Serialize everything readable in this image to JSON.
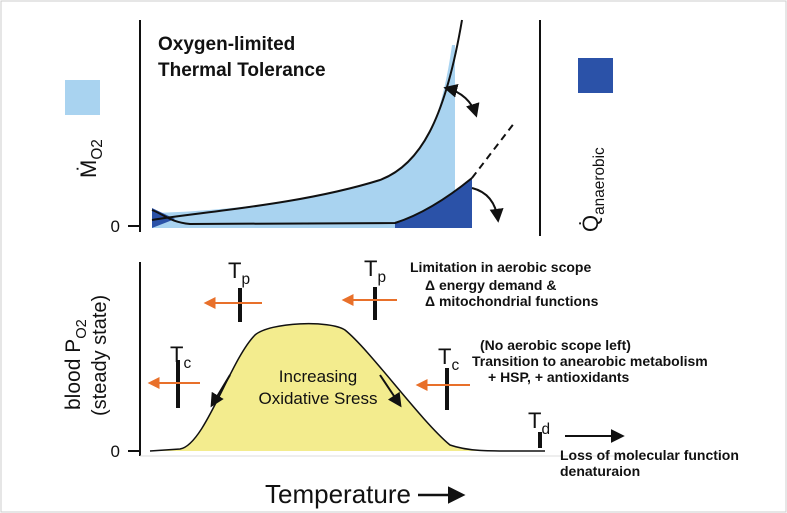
{
  "title": [
    "Oxygen-limited",
    "Thermal Tolerance"
  ],
  "top_panel": {
    "y_label": {
      "symbol": "Ṁ",
      "subscript": "O2"
    },
    "right_label": {
      "symbol": "Q̇",
      "subscript": "anaerobic"
    },
    "zero": "0"
  },
  "bottom_panel": {
    "y_label": {
      "text": "blood P",
      "subscript": "O2"
    },
    "y_label_2": "(steady state)",
    "zero": "0",
    "thresholds": [
      {
        "symbol": "T",
        "subscript": "p"
      },
      {
        "symbol": "T",
        "subscript": "p"
      },
      {
        "symbol": "T",
        "subscript": "c"
      },
      {
        "symbol": "T",
        "subscript": "c"
      },
      {
        "symbol": "T",
        "subscript": "d"
      }
    ],
    "notes": {
      "aerobic": [
        "Limitation in aerobic scope",
        "Δ energy demand &",
        "Δ mitochondrial functions"
      ],
      "anaerobic": [
        "(No aerobic scope left)",
        "Transition to anearobic metabolism",
        "+ HSP, + antioxidants"
      ],
      "denaturation": [
        "Loss of molecular function",
        "denaturaion"
      ]
    },
    "center_text": [
      "Increasing",
      "Oxidative Sress"
    ]
  },
  "x_label": "Temperature"
}
